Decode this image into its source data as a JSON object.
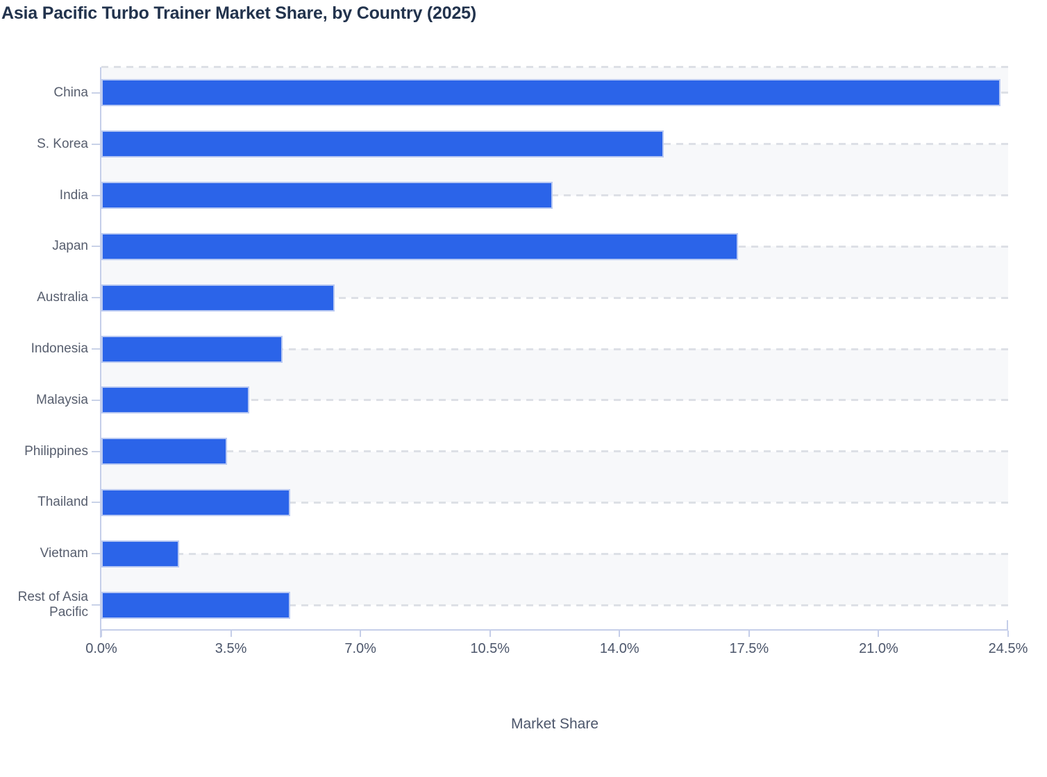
{
  "title": "Asia Pacific Turbo Trainer Market Share, by Country (2025)",
  "chart_data": {
    "type": "bar",
    "orientation": "horizontal",
    "title": "Asia Pacific Turbo Trainer Market Share, by Country (2025)",
    "categories": [
      "China",
      "S. Korea",
      "India",
      "Japan",
      "Australia",
      "Indonesia",
      "Malaysia",
      "Philippines",
      "Thailand",
      "Vietnam",
      "Rest of Asia Pacific"
    ],
    "values": [
      24.3,
      15.2,
      12.2,
      17.2,
      6.3,
      4.9,
      4.0,
      3.4,
      5.1,
      2.1,
      5.1
    ],
    "value_unit": "%",
    "xlabel": "Market Share",
    "ylabel": "",
    "xlim": [
      0,
      24.5
    ],
    "xticks": [
      0.0,
      3.5,
      7.0,
      10.5,
      14.0,
      17.5,
      21.0,
      24.5
    ],
    "xtick_labels": [
      "0.0%",
      "3.5%",
      "7.0%",
      "10.5%",
      "14.0%",
      "17.5%",
      "21.0%",
      "24.5%"
    ],
    "legend": "none",
    "grid": "dashed horizontal lines at category centers, alternating light band shading"
  },
  "colors": {
    "bar": "#2b64e9",
    "bar_edge": "#b9c9f2",
    "band": "#f7f8fa",
    "grid_dash": "#dde0e6",
    "axis": "#c5cee9",
    "tick_label": "#4c566b",
    "category_label": "#575e6e",
    "title": "#22334d",
    "background": "#ffffff"
  }
}
